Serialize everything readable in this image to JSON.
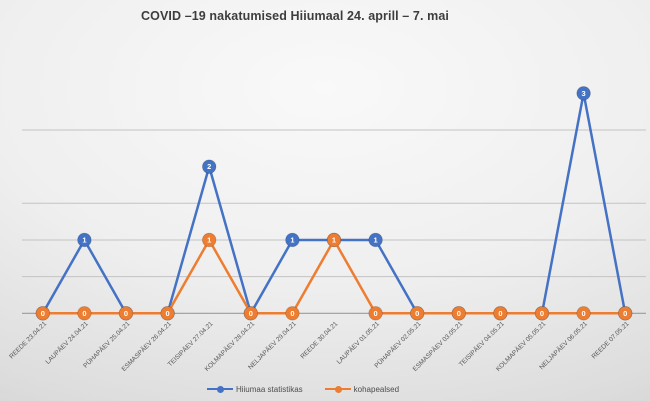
{
  "title": "COVID –19 nakatumised Hiiumaal 24. aprill – 7. mai",
  "chart_data": {
    "type": "line",
    "title": "COVID –19 nakatumised Hiiumaal 24. aprill – 7. mai",
    "categories": [
      "REEDE 23.04.21",
      "LAUPÄEV 24.04.21",
      "PÜHAPÄEV 25.04.21",
      "ESMASPÄEV 26.04.21",
      "TEISIPÄEV 27.04.21",
      "KOLMAPÄEV 28.04.21",
      "NELJAPÄEV 29.04.21",
      "REEDE 30.04.21",
      "LAUPÄEV 01.05.21",
      "PÜHAPÄEV 02.05.21",
      "ESMASPÄEV 03.05.21",
      "TEISIPÄEV 04.05.21",
      "KOLMAPÄEV 05.05.21",
      "NELJAPÄEV 06.05.21",
      "REEDE 07.05.21"
    ],
    "series": [
      {
        "name": "Hiiumaa statistikas",
        "color": "#4472C4",
        "values": [
          0,
          1,
          0,
          0,
          2,
          0,
          1,
          1,
          1,
          0,
          0,
          0,
          0,
          3,
          0
        ]
      },
      {
        "name": "kohapealsed",
        "color": "#ED7D31",
        "values": [
          0,
          0,
          0,
          0,
          1,
          0,
          0,
          1,
          0,
          0,
          0,
          0,
          0,
          0,
          0
        ]
      }
    ],
    "ylim": [
      0,
      3
    ],
    "gridline_values": [
      0.5,
      1,
      1.5,
      2.5
    ],
    "data_labels": true,
    "grid": "on",
    "legend_position": "bottom",
    "xlabel": "",
    "ylabel": ""
  },
  "colors": {
    "title_text": "#3d3d3d",
    "axis_line": "#9b9b9b",
    "gridline": "#c3c3c3",
    "tick_label_text": "#595959",
    "data_label_text": "#ffffff",
    "series_blue": "#4472C4",
    "series_orange": "#ED7D31"
  }
}
